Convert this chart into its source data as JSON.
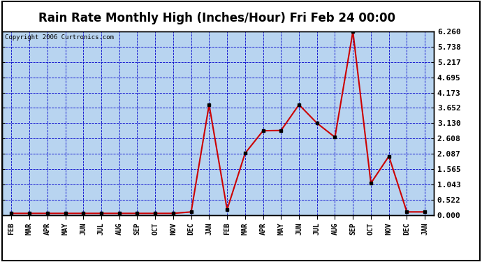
{
  "title": "Rain Rate Monthly High (Inches/Hour) Fri Feb 24 00:00",
  "copyright": "Copyright 2006 Curtronics.com",
  "labels": [
    "FEB",
    "MAR",
    "APR",
    "MAY",
    "JUN",
    "JUL",
    "AUG",
    "SEP",
    "OCT",
    "NOV",
    "DEC",
    "JAN",
    "FEB",
    "MAR",
    "APR",
    "MAY",
    "JUN",
    "JUL",
    "AUG",
    "SEP",
    "OCT",
    "NOV",
    "DEC",
    "JAN"
  ],
  "values": [
    0.05,
    0.05,
    0.05,
    0.05,
    0.05,
    0.05,
    0.05,
    0.05,
    0.05,
    0.05,
    0.1,
    3.76,
    0.18,
    2.1,
    2.87,
    2.88,
    3.76,
    3.13,
    2.65,
    6.26,
    1.08,
    2.0,
    0.1,
    0.1
  ],
  "yticks": [
    0.0,
    0.522,
    1.043,
    1.565,
    2.087,
    2.608,
    3.13,
    3.652,
    4.173,
    4.695,
    5.217,
    5.738,
    6.26
  ],
  "line_color": "#cc0000",
  "marker_color": "#cc0000",
  "marker_face": "#000000",
  "bg_color": "#b8d4f0",
  "plot_bg": "#b8d4f0",
  "title_bg": "#ffffff",
  "grid_color": "#0000cc",
  "border_color": "#000000",
  "title_fontsize": 12,
  "ylim": [
    0.0,
    6.26
  ],
  "xlim": [
    -0.5,
    23.5
  ]
}
